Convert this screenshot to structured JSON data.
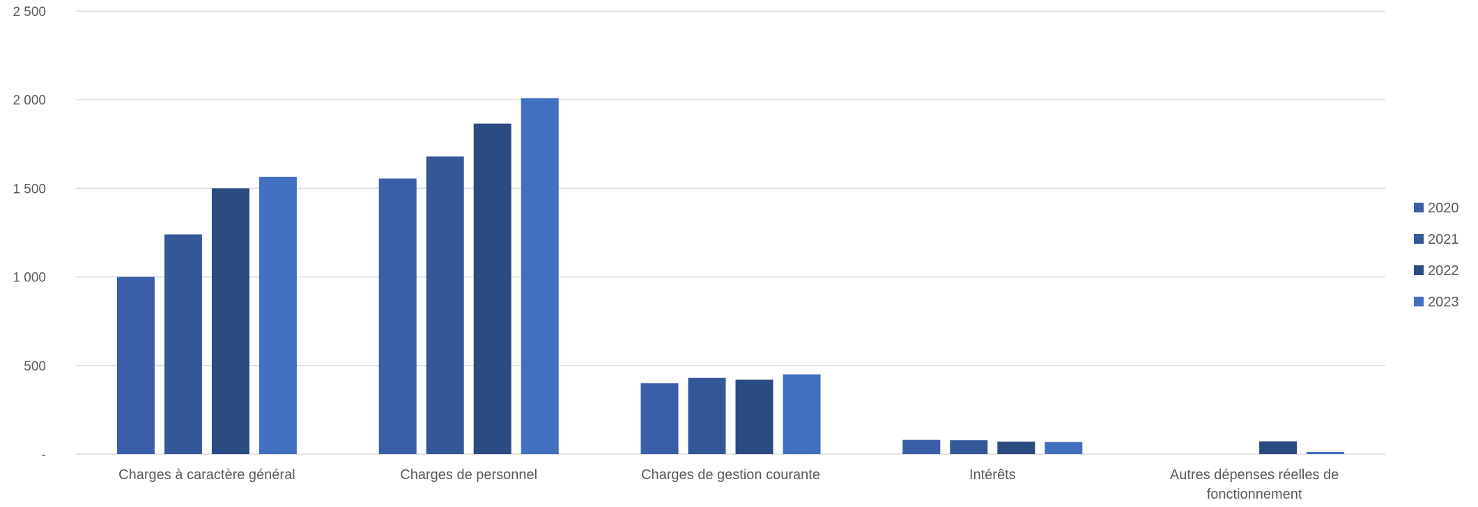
{
  "chart_data": {
    "type": "bar",
    "title": "",
    "xlabel": "",
    "ylabel": "",
    "categories": [
      [
        "Charges à caractère général"
      ],
      [
        "Charges de personnel"
      ],
      [
        "Charges de gestion courante"
      ],
      [
        "Intérêts"
      ],
      [
        "Autres dépenses réelles de",
        "fonctionnement"
      ]
    ],
    "series": [
      {
        "name": "2020",
        "color": "#3A5FA8",
        "values": [
          1000,
          1555,
          400,
          80,
          0
        ]
      },
      {
        "name": "2021",
        "color": "#335797",
        "values": [
          1240,
          1680,
          430,
          78,
          0
        ]
      },
      {
        "name": "2022",
        "color": "#2A4A82",
        "values": [
          1500,
          1865,
          420,
          70,
          72
        ]
      },
      {
        "name": "2023",
        "color": "#4270C0",
        "values": [
          1565,
          2008,
          450,
          68,
          12
        ]
      }
    ],
    "ylim": [
      0,
      2500
    ],
    "yticks": [
      {
        "value": 0,
        "label": "-"
      },
      {
        "value": 500,
        "label": "500"
      },
      {
        "value": 1000,
        "label": "1 000"
      },
      {
        "value": 1500,
        "label": "1 500"
      },
      {
        "value": 2000,
        "label": "2 000"
      },
      {
        "value": 2500,
        "label": "2 500"
      }
    ],
    "grid": true,
    "legend_position": "right"
  }
}
